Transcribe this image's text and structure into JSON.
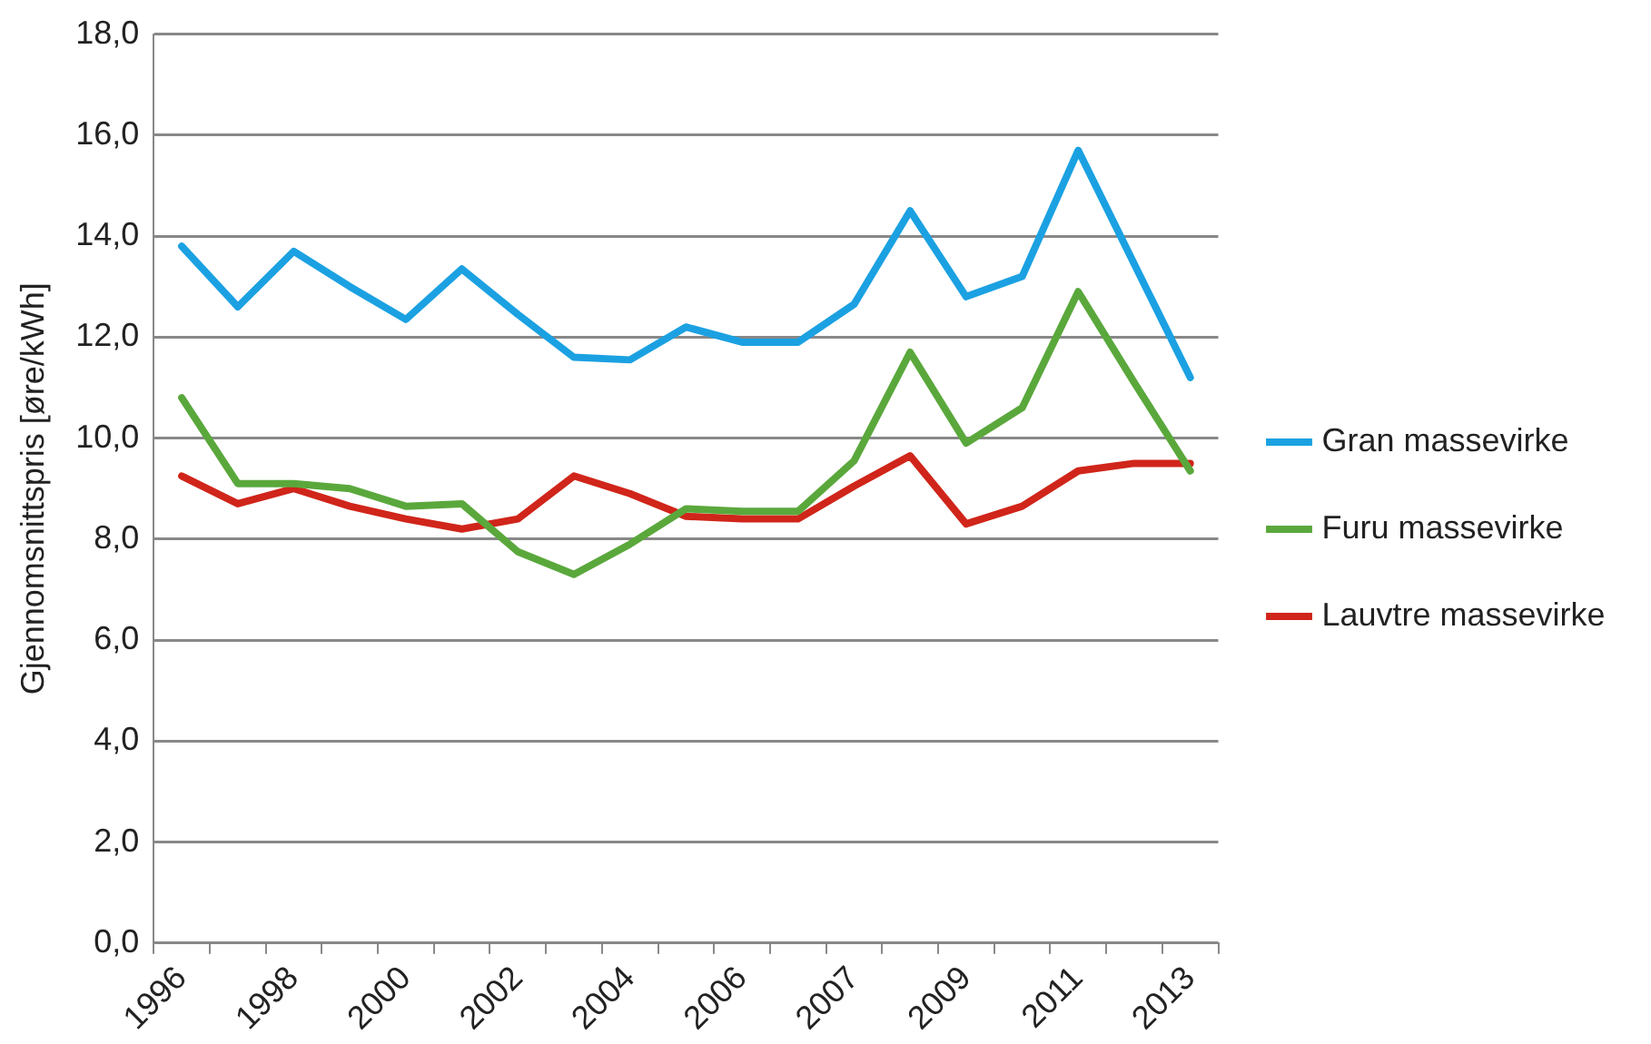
{
  "chart_data": {
    "type": "line",
    "ylabel": "Gjennomsnittspris [øre/kWh]",
    "categories": [
      "1996",
      null,
      "1998",
      null,
      "2000",
      null,
      "2002",
      null,
      "2004",
      null,
      "2006",
      null,
      "2007",
      null,
      "2009",
      null,
      "2011",
      null,
      "2013"
    ],
    "series": [
      {
        "name": "Gran massevirke",
        "color": "#1ba1e2",
        "values": [
          13.8,
          12.6,
          13.7,
          13.0,
          12.35,
          13.35,
          12.45,
          11.6,
          11.55,
          12.2,
          11.9,
          11.9,
          12.65,
          14.5,
          12.8,
          13.2,
          15.7,
          13.45,
          11.2
        ]
      },
      {
        "name": "Furu massevirke",
        "color": "#5aa83c",
        "values": [
          10.8,
          9.1,
          9.1,
          9.0,
          8.65,
          8.7,
          7.75,
          7.3,
          7.9,
          8.6,
          8.55,
          8.55,
          9.55,
          11.7,
          9.9,
          10.6,
          12.9,
          11.1,
          9.35
        ]
      },
      {
        "name": "Lauvtre massevirke",
        "color": "#d0251a",
        "values": [
          9.25,
          8.7,
          9.0,
          8.65,
          8.4,
          8.2,
          8.4,
          9.25,
          8.9,
          8.45,
          8.4,
          8.4,
          9.05,
          9.65,
          8.3,
          8.65,
          9.35,
          9.5,
          9.5
        ]
      }
    ],
    "ylim": [
      0,
      18
    ],
    "yticks": [
      {
        "value": 0,
        "label": "0,0"
      },
      {
        "value": 2,
        "label": "2,0"
      },
      {
        "value": 4,
        "label": "4,0"
      },
      {
        "value": 6,
        "label": "6,0"
      },
      {
        "value": 8,
        "label": "8,0"
      },
      {
        "value": 10,
        "label": "10,0"
      },
      {
        "value": 12,
        "label": "12,0"
      },
      {
        "value": 14,
        "label": "14,0"
      },
      {
        "value": 16,
        "label": "16,0"
      },
      {
        "value": 18,
        "label": "18,0"
      }
    ],
    "grid": "y",
    "legend": "right",
    "marker": "none",
    "line_style": "solid"
  }
}
